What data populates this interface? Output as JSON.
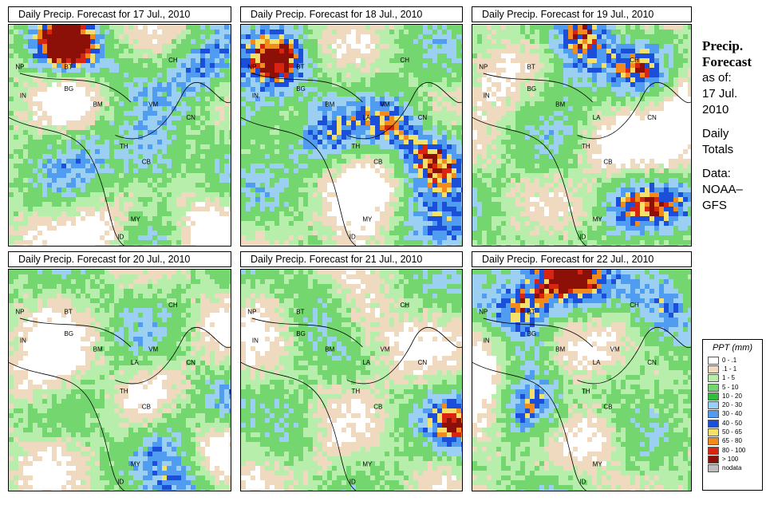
{
  "panels": [
    {
      "title": "Daily Precip. Forecast for  17 Jul., 2010"
    },
    {
      "title": "Daily Precip. Forecast for  18 Jul., 2010"
    },
    {
      "title": "Daily Precip. Forecast for  19 Jul., 2010"
    },
    {
      "title": "Daily Precip. Forecast for  20 Jul., 2010"
    },
    {
      "title": "Daily Precip. Forecast for  21 Jul., 2010"
    },
    {
      "title": "Daily Precip. Forecast for  22 Jul., 2010"
    }
  ],
  "sidebar": {
    "heading1": "Precip.",
    "heading2": "Forecast",
    "asof_label": "as of:",
    "asof_date1": "17 Jul.",
    "asof_date2": "2010",
    "totals1": "Daily",
    "totals2": "Totals",
    "data1": "Data:",
    "data2": "NOAA–",
    "data3": "GFS"
  },
  "legend": {
    "title": "PPT (mm)",
    "items": [
      {
        "label": "0 - .1",
        "color": "#ffffff"
      },
      {
        "label": ".1 - 1",
        "color": "#efd9bf"
      },
      {
        "label": "1 - 5",
        "color": "#b8eeab"
      },
      {
        "label": "5 - 10",
        "color": "#74d66f"
      },
      {
        "label": "10 - 20",
        "color": "#2fbf3a"
      },
      {
        "label": "20 - 30",
        "color": "#9bd0f3"
      },
      {
        "label": "30 - 40",
        "color": "#4f9cf0"
      },
      {
        "label": "40 - 50",
        "color": "#1c4fd9"
      },
      {
        "label": "50 - 65",
        "color": "#f5e06a"
      },
      {
        "label": "65 - 80",
        "color": "#f28a1c"
      },
      {
        "label": "80 - 100",
        "color": "#d9250f"
      },
      {
        "label": "> 100",
        "color": "#8c1008"
      },
      {
        "label": "nodata",
        "color": "#bdbdbd"
      }
    ]
  },
  "country_labels": [
    "NP",
    "BT",
    "BG",
    "IN",
    "BM",
    "CH",
    "VM",
    "LA",
    "TH",
    "CB",
    "CN",
    "MY",
    "ID"
  ]
}
